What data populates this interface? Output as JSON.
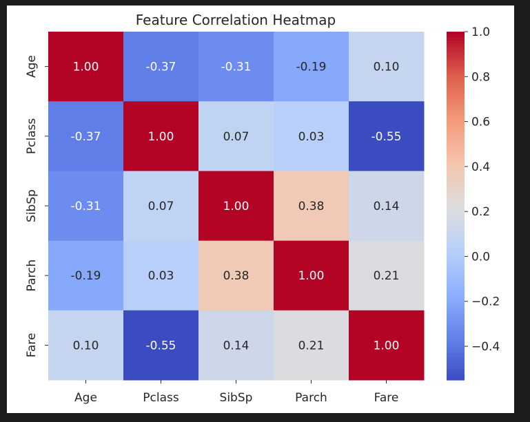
{
  "chart_data": {
    "type": "heatmap",
    "title": "Feature Correlation Heatmap",
    "xlabel": "",
    "ylabel": "",
    "row_labels": [
      "Age",
      "Pclass",
      "SibSp",
      "Parch",
      "Fare"
    ],
    "col_labels": [
      "Age",
      "Pclass",
      "SibSp",
      "Parch",
      "Fare"
    ],
    "values": [
      [
        1.0,
        -0.37,
        -0.31,
        -0.19,
        0.1
      ],
      [
        -0.37,
        1.0,
        0.07,
        0.03,
        -0.55
      ],
      [
        -0.31,
        0.07,
        1.0,
        0.38,
        0.14
      ],
      [
        -0.19,
        0.03,
        0.38,
        1.0,
        0.21
      ],
      [
        0.1,
        -0.55,
        0.14,
        0.21,
        1.0
      ]
    ],
    "annotations": [
      [
        "1.00",
        "-0.37",
        "-0.31",
        "-0.19",
        "0.10"
      ],
      [
        "-0.37",
        "1.00",
        "0.07",
        "0.03",
        "-0.55"
      ],
      [
        "-0.31",
        "0.07",
        "1.00",
        "0.38",
        "0.14"
      ],
      [
        "-0.19",
        "0.03",
        "0.38",
        "1.00",
        "0.21"
      ],
      [
        "0.10",
        "-0.55",
        "0.14",
        "0.21",
        "1.00"
      ]
    ],
    "colormap": "coolwarm",
    "vmin": -0.55,
    "vmax": 1.0,
    "colorbar": {
      "ticks": [
        1.0,
        0.8,
        0.6,
        0.4,
        0.2,
        0.0,
        -0.2,
        -0.4
      ],
      "tick_labels": [
        "1.0",
        "0.8",
        "0.6",
        "0.4",
        "0.2",
        "0.0",
        "−0.2",
        "−0.4"
      ],
      "placement": "right"
    },
    "colors": {
      "cold": "#3b4cc0",
      "neutral": "#dddddd",
      "hot": "#b40426"
    }
  }
}
